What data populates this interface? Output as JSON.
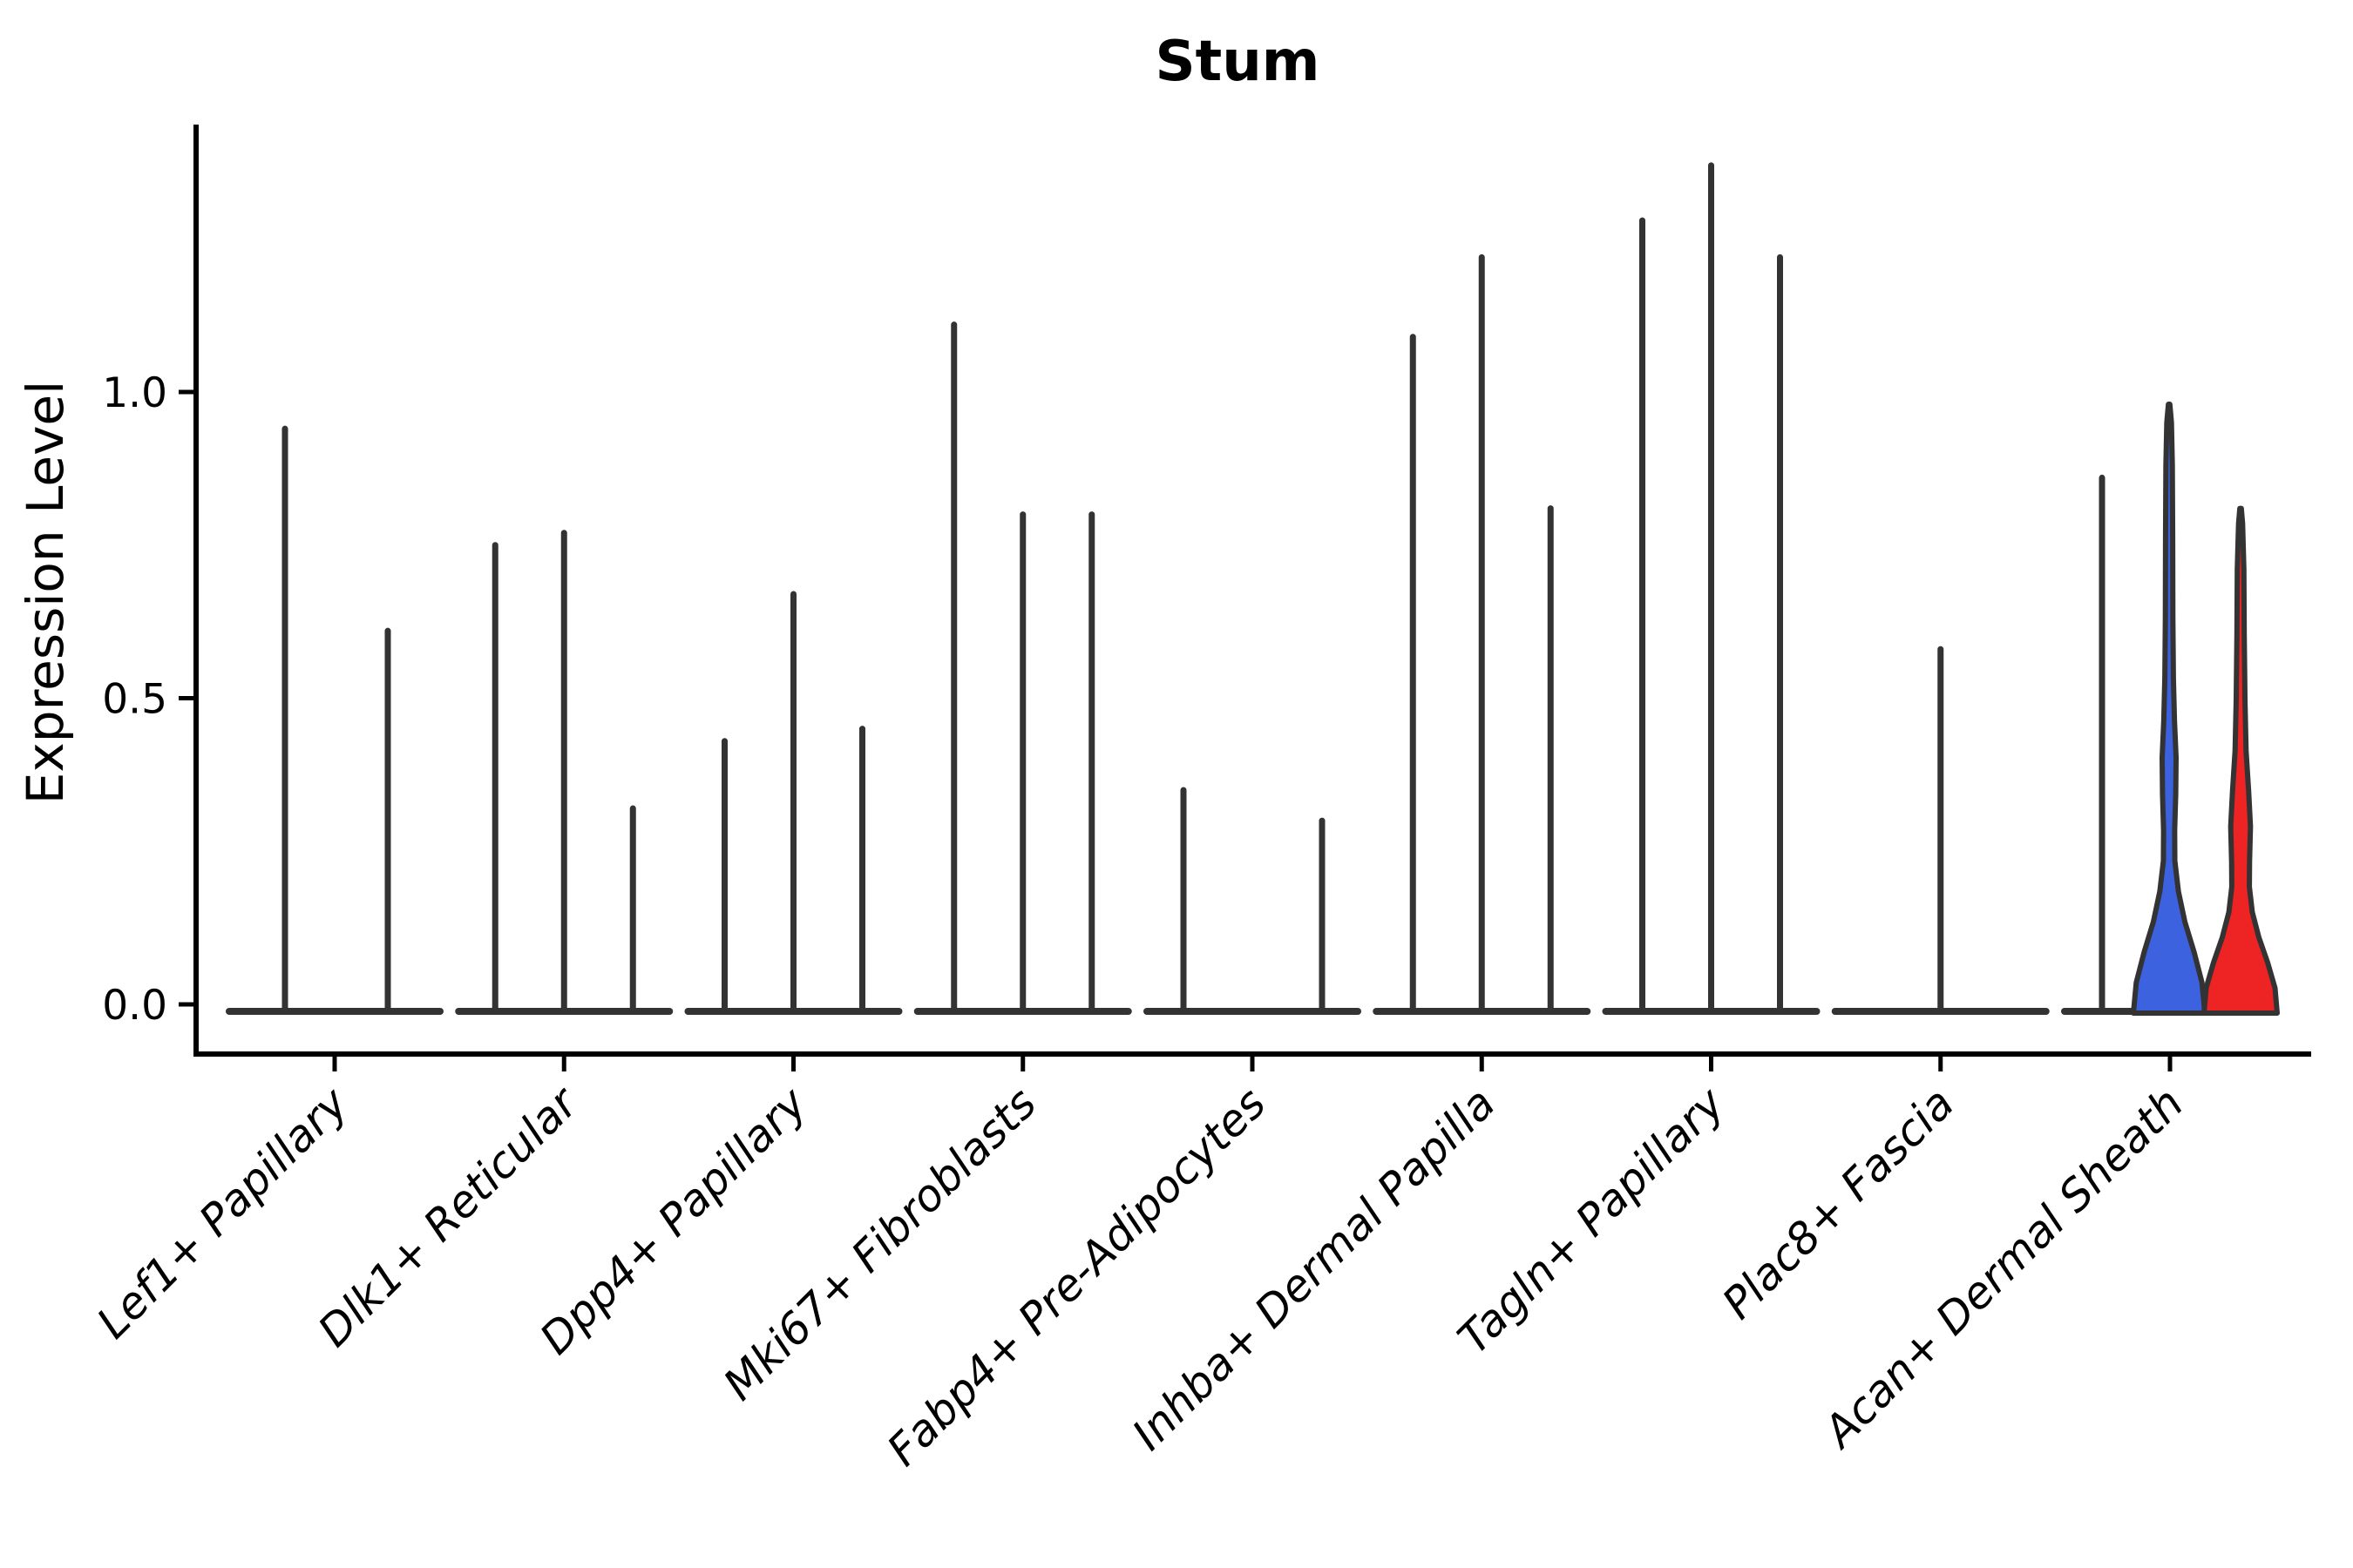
{
  "page": {
    "background": "#ffffff"
  },
  "chart_data": {
    "type": "violin",
    "title": "Stum",
    "ylabel": "Expression Level",
    "xlabel": "",
    "yticks": [
      0.0,
      0.5,
      1.0
    ],
    "ylim": [
      -0.08,
      1.44
    ],
    "grid": false,
    "legend": "none",
    "style": {
      "spine_color": "#000000",
      "outline_color": "#333333",
      "blue_fill": "#3C62E0",
      "red_fill": "#EE2323",
      "background": "#ffffff"
    },
    "groups": [
      {
        "label": "Lef1+ Papillary",
        "violins": [
          {
            "dx": -57,
            "max": 0.94,
            "style": "line"
          },
          {
            "dx": 61,
            "max": 0.61,
            "style": "line"
          }
        ]
      },
      {
        "label": "Dlk1+ Reticular",
        "violins": [
          {
            "dx": -79,
            "max": 0.75,
            "style": "line"
          },
          {
            "dx": 0,
            "max": 0.77,
            "style": "line"
          },
          {
            "dx": 79,
            "max": 0.32,
            "style": "line"
          }
        ]
      },
      {
        "label": "Dpp4+ Papillary",
        "violins": [
          {
            "dx": -79,
            "max": 0.43,
            "style": "line"
          },
          {
            "dx": 0,
            "max": 0.67,
            "style": "line"
          },
          {
            "dx": 79,
            "max": 0.45,
            "style": "line"
          }
        ]
      },
      {
        "label": "Mki67+ Fibroblasts",
        "violins": [
          {
            "dx": -79,
            "max": 1.11,
            "style": "line"
          },
          {
            "dx": 0,
            "max": 0.8,
            "style": "line"
          },
          {
            "dx": 79,
            "max": 0.8,
            "style": "line"
          }
        ]
      },
      {
        "label": "Fabp4+ Pre-Adipocytes",
        "violins": [
          {
            "dx": -79,
            "max": 0.35,
            "style": "line"
          },
          {
            "dx": 80,
            "max": 0.3,
            "style": "line"
          }
        ]
      },
      {
        "label": "Inhba+ Dermal Papilla",
        "violins": [
          {
            "dx": -79,
            "max": 1.09,
            "style": "line"
          },
          {
            "dx": 0,
            "max": 1.22,
            "style": "line"
          },
          {
            "dx": 79,
            "max": 0.81,
            "style": "line"
          }
        ]
      },
      {
        "label": "Tagln+ Papillary",
        "violins": [
          {
            "dx": -79,
            "max": 1.28,
            "style": "line"
          },
          {
            "dx": 0,
            "max": 1.37,
            "style": "line"
          },
          {
            "dx": 79,
            "max": 1.22,
            "style": "line"
          }
        ]
      },
      {
        "label": "Plac8+ Fascia",
        "violins": [
          {
            "dx": 0,
            "max": 0.58,
            "style": "line"
          }
        ]
      },
      {
        "label": "Acan+ Dermal Sheath",
        "violins": [
          {
            "dx": -78,
            "max": 0.86,
            "style": "line"
          },
          {
            "dx": -1,
            "max": 0.98,
            "style": "violin",
            "fill": "#3C62E0"
          },
          {
            "dx": 81,
            "max": 0.81,
            "style": "violin",
            "fill": "#EE2323"
          }
        ]
      }
    ]
  }
}
